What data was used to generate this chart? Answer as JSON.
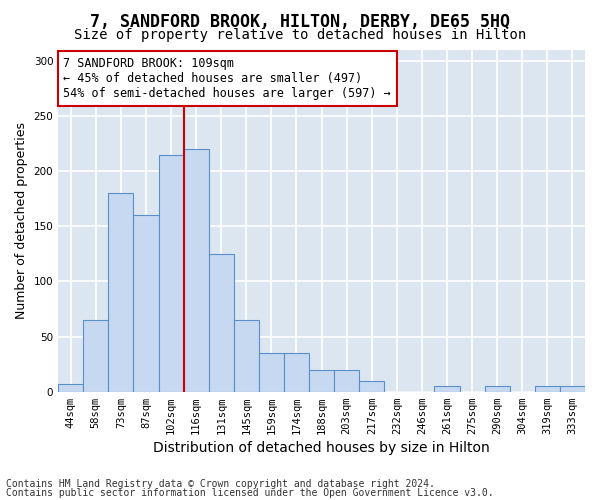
{
  "title1": "7, SANDFORD BROOK, HILTON, DERBY, DE65 5HQ",
  "title2": "Size of property relative to detached houses in Hilton",
  "xlabel": "Distribution of detached houses by size in Hilton",
  "ylabel": "Number of detached properties",
  "bar_color": "#c6d9f0",
  "bar_edge_color": "#5b8fc9",
  "background_color": "#dce6f1",
  "grid_color": "#ffffff",
  "categories": [
    "44sqm",
    "58sqm",
    "73sqm",
    "87sqm",
    "102sqm",
    "116sqm",
    "131sqm",
    "145sqm",
    "159sqm",
    "174sqm",
    "188sqm",
    "203sqm",
    "217sqm",
    "232sqm",
    "246sqm",
    "261sqm",
    "275sqm",
    "290sqm",
    "304sqm",
    "319sqm",
    "333sqm"
  ],
  "values": [
    7,
    65,
    180,
    160,
    215,
    220,
    125,
    65,
    35,
    35,
    20,
    20,
    10,
    0,
    0,
    5,
    0,
    5,
    0,
    5,
    5
  ],
  "ylim": [
    0,
    310
  ],
  "yticks": [
    0,
    50,
    100,
    150,
    200,
    250,
    300
  ],
  "property_line_bin": 4.5,
  "annotation_text": "7 SANDFORD BROOK: 109sqm\n← 45% of detached houses are smaller (497)\n54% of semi-detached houses are larger (597) →",
  "annotation_box_color": "#ffffff",
  "annotation_border_color": "#cc0000",
  "red_line_color": "#cc0000",
  "footer1": "Contains HM Land Registry data © Crown copyright and database right 2024.",
  "footer2": "Contains public sector information licensed under the Open Government Licence v3.0.",
  "title1_fontsize": 12,
  "title2_fontsize": 10,
  "xlabel_fontsize": 10,
  "ylabel_fontsize": 9,
  "tick_fontsize": 7.5,
  "annotation_fontsize": 8.5,
  "footer_fontsize": 7
}
